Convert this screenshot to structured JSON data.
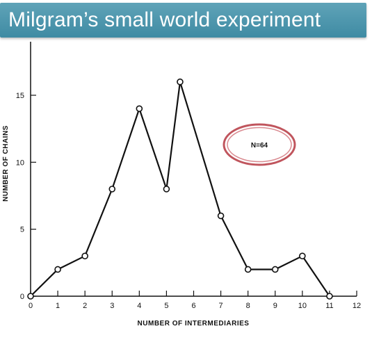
{
  "header": {
    "title": "Milgram’s small world experiment"
  },
  "chart_data": {
    "type": "line",
    "title": "",
    "xlabel": "NUMBER OF INTERMEDIARIES",
    "ylabel": "NUMBER OF CHAINS",
    "x": [
      0,
      1,
      2,
      3,
      4,
      5,
      5.5,
      7,
      8,
      9,
      10,
      11
    ],
    "values": [
      0,
      2,
      3,
      8,
      14,
      8,
      16,
      6,
      2,
      2,
      3,
      0
    ],
    "xlim": [
      0,
      12
    ],
    "ylim": [
      0,
      16
    ],
    "xticks": [
      "0",
      "1",
      "2",
      "3",
      "4",
      "5",
      "6",
      "7",
      "8",
      "9",
      "10",
      "11",
      "12"
    ],
    "yticks": [
      "0",
      "5",
      "10",
      "15"
    ],
    "annotation": "N=64",
    "grid": false,
    "legend": "none",
    "colors": {
      "line": "#111111",
      "ellipse": "#c0555d"
    }
  }
}
